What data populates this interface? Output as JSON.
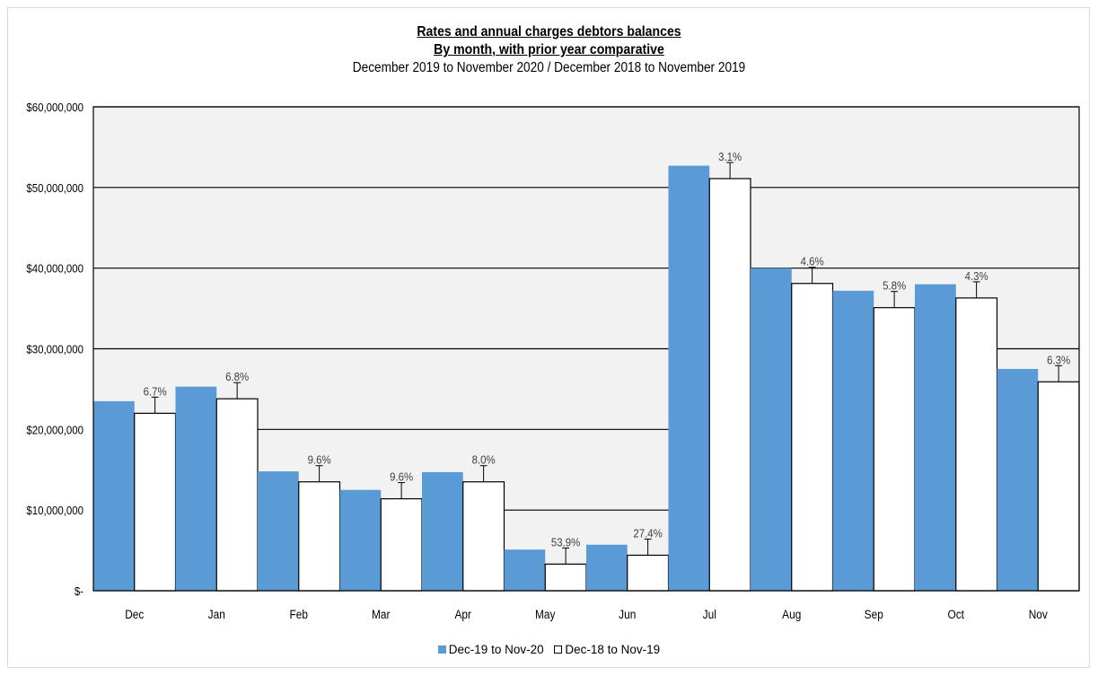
{
  "colors": {
    "series1": "#5b9bd5",
    "series2": "#ffffff",
    "plot_bg": "#f2f2f2",
    "grid": "#000000"
  },
  "chart_data": {
    "type": "bar",
    "title": "Rates and annual charges debtors balances",
    "subtitle": "By month, with prior year comparative",
    "subtitle2": "December  2019  to November  2020  / December  2018  to November  2019",
    "xlabel": "",
    "ylabel": "",
    "ylim": [
      0,
      60000000
    ],
    "yticks": [
      0,
      10000000,
      20000000,
      30000000,
      40000000,
      50000000,
      60000000
    ],
    "ytick_labels": [
      "$-",
      "$10,000,000",
      "$20,000,000",
      "$30,000,000",
      "$40,000,000",
      "$50,000,000",
      "$60,000,000"
    ],
    "grid": true,
    "legend_position": "bottom",
    "categories": [
      "Dec",
      "Jan",
      "Feb",
      "Mar",
      "Apr",
      "May",
      "Jun",
      "Jul",
      "Aug",
      "Sep",
      "Oct",
      "Nov"
    ],
    "series": [
      {
        "name": "Dec-19 to Nov-20",
        "values": [
          23500000,
          25300000,
          14800000,
          12500000,
          14700000,
          5100000,
          5700000,
          52700000,
          40000000,
          37200000,
          38000000,
          27500000
        ]
      },
      {
        "name": "Dec-18 to Nov-19",
        "values": [
          22000000,
          23800000,
          13500000,
          11400000,
          13500000,
          3300000,
          4400000,
          51100000,
          38100000,
          35100000,
          36300000,
          25900000
        ],
        "data_labels": [
          "6.7%",
          "6.8%",
          "9.6%",
          "9.6%",
          "8.0%",
          "53.9%",
          "27.4%",
          "3.1%",
          "4.6%",
          "5.8%",
          "4.3%",
          "6.3%"
        ]
      }
    ]
  }
}
